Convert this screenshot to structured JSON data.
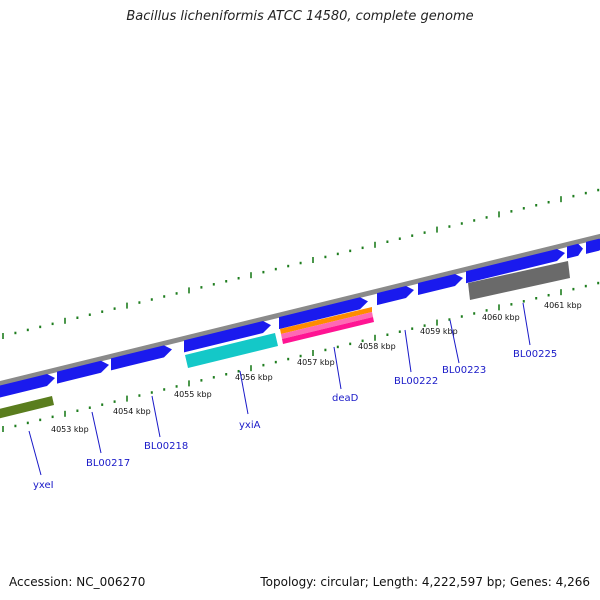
{
  "title": "Bacillus licheniformis ATCC 14580, complete genome",
  "footer": {
    "accession": "Accession: NC_006270",
    "stats": "Topology: circular; Length: 4,222,597 bp; Genes: 4,266"
  },
  "kbp_labels": [
    "4053 kbp",
    "4054 kbp",
    "4055 kbp",
    "4056 kbp",
    "4057 kbp",
    "4058 kbp",
    "4059 kbp",
    "4060 kbp",
    "4061 kbp"
  ],
  "gene_labels": [
    "yxeI",
    "BL00217",
    "BL00218",
    "yxiA",
    "deaD",
    "BL00222",
    "BL00223",
    "BL00225"
  ],
  "colors": {
    "cds_forward": "#1a1aee",
    "backbone": "#8c8c8c",
    "tick_green": "#1e7d1e",
    "label_blue": "#1a1ac8",
    "yxeI_olive": "#5a7d1e",
    "yxiA_cyan": "#14c8c8",
    "deaD_multicolor": [
      "#ff8c00",
      "#ff69b4",
      "#ff1493"
    ],
    "BL00225_gray": "#707070"
  }
}
